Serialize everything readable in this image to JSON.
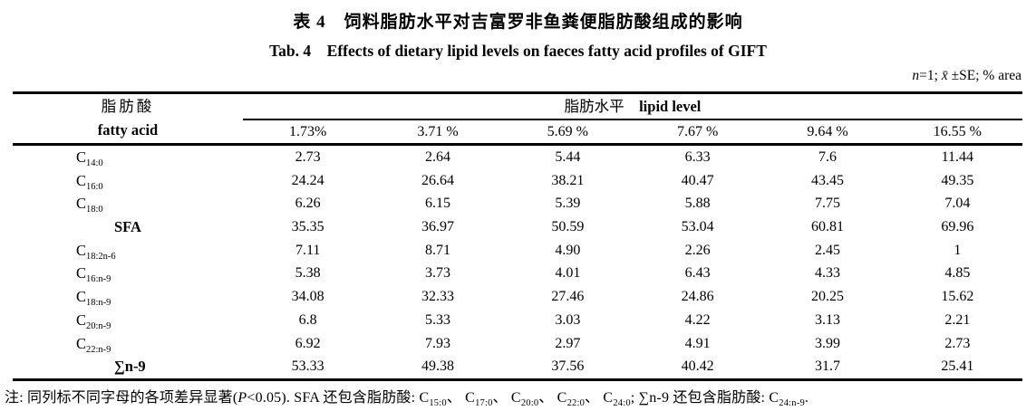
{
  "titles": {
    "zh": "表 4　饲料脂肪水平对吉富罗非鱼粪便脂肪酸组成的影响",
    "en": "Tab. 4　Effects of dietary lipid levels on faeces fatty acid profiles of GIFT"
  },
  "stat_note_segments": [
    {
      "t": "n",
      "style": "i"
    },
    {
      "t": "=1; "
    },
    {
      "t": "x̄",
      "style": "i"
    },
    {
      "t": " ±SE; % area"
    }
  ],
  "table": {
    "header": {
      "fatty_acid_zh": "脂肪酸",
      "fatty_acid_en": "fatty acid",
      "lipid_level_segments": [
        {
          "t": "脂肪水平"
        },
        {
          "t": "　"
        },
        {
          "t": "lipid level",
          "style": "b"
        }
      ],
      "columns": [
        "1.73%",
        "3.71 %",
        "5.69 %",
        "7.67 %",
        "9.64 %",
        "16.55 %"
      ]
    },
    "rows": [
      {
        "label_base": "C",
        "label_sub": "14:0",
        "summary": false,
        "values": [
          "2.73",
          "2.64",
          "5.44",
          "6.33",
          "7.6",
          "11.44"
        ]
      },
      {
        "label_base": "C",
        "label_sub": "16:0",
        "summary": false,
        "values": [
          "24.24",
          "26.64",
          "38.21",
          "40.47",
          "43.45",
          "49.35"
        ]
      },
      {
        "label_base": "C",
        "label_sub": "18:0",
        "summary": false,
        "values": [
          "6.26",
          "6.15",
          "5.39",
          "5.88",
          "7.75",
          "7.04"
        ]
      },
      {
        "label_base": "SFA",
        "label_sub": "",
        "summary": true,
        "values": [
          "35.35",
          "36.97",
          "50.59",
          "53.04",
          "60.81",
          "69.96"
        ]
      },
      {
        "label_base": "C",
        "label_sub": "18:2n-6",
        "summary": false,
        "values": [
          "7.11",
          "8.71",
          "4.90",
          "2.26",
          "2.45",
          "1"
        ]
      },
      {
        "label_base": "C",
        "label_sub": "16:n-9",
        "summary": false,
        "values": [
          "5.38",
          "3.73",
          "4.01",
          "6.43",
          "4.33",
          "4.85"
        ]
      },
      {
        "label_base": "C",
        "label_sub": "18:n-9",
        "summary": false,
        "values": [
          "34.08",
          "32.33",
          "27.46",
          "24.86",
          "20.25",
          "15.62"
        ]
      },
      {
        "label_base": "C",
        "label_sub": "20:n-9",
        "summary": false,
        "values": [
          "6.8",
          "5.33",
          "3.03",
          "4.22",
          "3.13",
          "2.21"
        ]
      },
      {
        "label_base": "C",
        "label_sub": "22:n-9",
        "summary": false,
        "values": [
          "6.92",
          "7.93",
          "2.97",
          "4.91",
          "3.99",
          "2.73"
        ]
      },
      {
        "label_base": "∑n-9",
        "label_sub": "",
        "summary": true,
        "values": [
          "53.33",
          "49.38",
          "37.56",
          "40.42",
          "31.7",
          "25.41"
        ]
      }
    ]
  },
  "footnote_segments": [
    {
      "t": "注: 同列标不同字母的各项差异显著("
    },
    {
      "t": "P",
      "style": "i"
    },
    {
      "t": "<0.05). SFA 还包含脂肪酸: C"
    },
    {
      "t": "15:0",
      "style": "sub"
    },
    {
      "t": "、 C"
    },
    {
      "t": "17:0",
      "style": "sub"
    },
    {
      "t": "、 C"
    },
    {
      "t": "20:0",
      "style": "sub"
    },
    {
      "t": "、 C"
    },
    {
      "t": "22:0",
      "style": "sub"
    },
    {
      "t": "、 C"
    },
    {
      "t": "24:0",
      "style": "sub"
    },
    {
      "t": "; ∑n-9 还包含脂肪酸: C"
    },
    {
      "t": "24:n-9",
      "style": "sub"
    },
    {
      "t": "."
    }
  ],
  "colors": {
    "text": "#000000",
    "background": "#ffffff",
    "rule": "#000000"
  }
}
